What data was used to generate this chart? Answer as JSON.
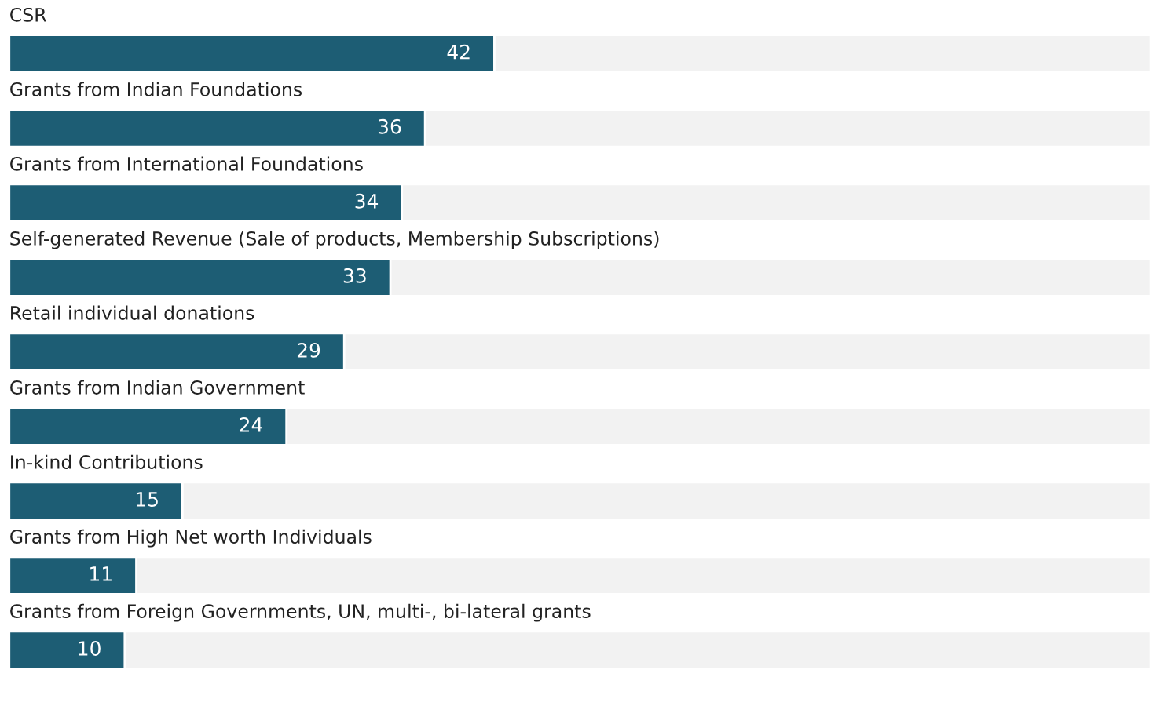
{
  "chart_data": {
    "type": "bar",
    "orientation": "horizontal",
    "data_labels": true,
    "categories": [
      "CSR",
      "Grants from Indian Foundations",
      "Grants from International Foundations",
      "Self-generated Revenue (Sale of products, Membership Subscriptions)",
      "Retail individual donations",
      "Grants from Indian Government",
      "In-kind Contributions",
      "Grants from High Net worth Individuals",
      "Grants from Foreign Governments, UN, multi-, bi-lateral grants"
    ],
    "values": [
      42,
      36,
      34,
      33,
      29,
      24,
      15,
      11,
      10
    ],
    "color": "#1d5d74"
  }
}
